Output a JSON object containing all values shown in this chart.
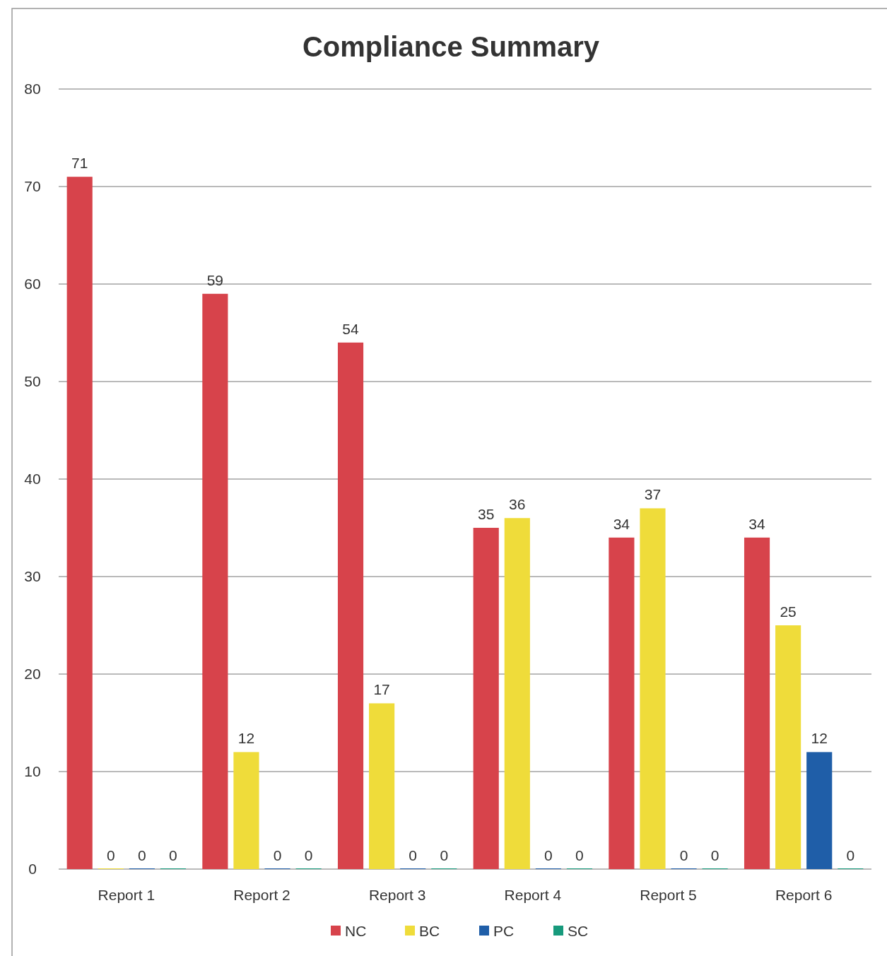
{
  "chart_data": {
    "type": "bar",
    "title": "Compliance Summary",
    "categories": [
      "Report 1",
      "Report 2",
      "Report 3",
      "Report 4",
      "Report 5",
      "Report 6"
    ],
    "series": [
      {
        "name": "NC",
        "color": "#d7434b",
        "values": [
          71,
          59,
          54,
          35,
          34,
          34
        ]
      },
      {
        "name": "BC",
        "color": "#efdc3a",
        "values": [
          0,
          12,
          17,
          36,
          37,
          25
        ]
      },
      {
        "name": "PC",
        "color": "#1f5ea8",
        "values": [
          0,
          0,
          0,
          0,
          0,
          12
        ]
      },
      {
        "name": "SC",
        "color": "#179a7c",
        "values": [
          0,
          0,
          0,
          0,
          0,
          0
        ]
      }
    ],
    "ylim": [
      0,
      80
    ],
    "yticks": [
      0,
      10,
      20,
      30,
      40,
      50,
      60,
      70,
      80
    ],
    "grid": "y",
    "legend": "bottom",
    "data_labels": true
  }
}
